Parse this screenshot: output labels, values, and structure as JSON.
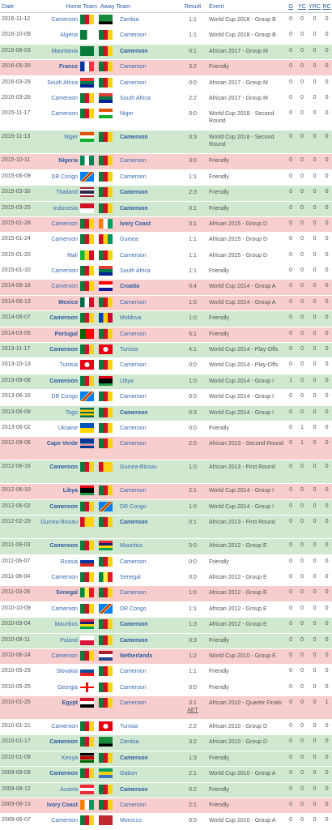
{
  "headers": {
    "date": "Date",
    "home": "Home Team",
    "away": "Away Team",
    "result": "Result",
    "event": "Event",
    "g": "G",
    "yc": "YC",
    "yrc": "YRC",
    "rc": "RC"
  },
  "matches": [
    {
      "date": "2016-11-12",
      "home": "Cameroon",
      "home_flag": "cm",
      "away": "Zambia",
      "away_flag": "zm",
      "result": "1:1",
      "event": "World Cup 2018 - Group B",
      "g": "0",
      "yc": "0",
      "yrc": "0",
      "rc": "0",
      "outcome": "d",
      "bold": "none"
    },
    {
      "date": "2016-10-09",
      "home": "Algeria",
      "home_flag": "dz",
      "away": "Cameroon",
      "away_flag": "cm",
      "result": "1:1",
      "event": "World Cup 2018 - Group B",
      "g": "0",
      "yc": "0",
      "yrc": "0",
      "rc": "0",
      "outcome": "d",
      "bold": "none"
    },
    {
      "date": "2016-06-03",
      "home": "Mauritania",
      "home_flag": "mr",
      "away": "Cameroon",
      "away_flag": "cm",
      "result": "0:1",
      "event": "African 2017 - Group M",
      "g": "0",
      "yc": "0",
      "yrc": "0",
      "rc": "0",
      "outcome": "w",
      "bold": "away"
    },
    {
      "date": "2016-05-30",
      "home": "France",
      "home_flag": "fr",
      "away": "Cameroon",
      "away_flag": "cm",
      "result": "3:2",
      "event": "Friendly",
      "g": "0",
      "yc": "0",
      "yrc": "0",
      "rc": "0",
      "outcome": "l",
      "bold": "home"
    },
    {
      "date": "2016-03-29",
      "home": "South Africa",
      "home_flag": "za",
      "away": "Cameroon",
      "away_flag": "cm",
      "result": "0:0",
      "event": "African 2017 - Group M",
      "g": "0",
      "yc": "0",
      "yrc": "0",
      "rc": "0",
      "outcome": "d",
      "bold": "none"
    },
    {
      "date": "2016-03-26",
      "home": "Cameroon",
      "home_flag": "cm",
      "away": "South Africa",
      "away_flag": "za",
      "result": "2:2",
      "event": "African 2017 - Group M",
      "g": "0",
      "yc": "0",
      "yrc": "0",
      "rc": "0",
      "outcome": "d",
      "bold": "none"
    },
    {
      "date": "2015-11-17",
      "home": "Cameroon",
      "home_flag": "cm",
      "away": "Niger",
      "away_flag": "ne",
      "result": "0:0",
      "event": "World Cup 2018 - Second Round",
      "g": "0",
      "yc": "0",
      "yrc": "0",
      "rc": "0",
      "outcome": "d",
      "bold": "none"
    },
    {
      "date": "2015-11-13",
      "home": "Niger",
      "home_flag": "ne",
      "away": "Cameroon",
      "away_flag": "cm",
      "result": "0:3",
      "event": "World Cup 2018 - Second Round",
      "g": "0",
      "yc": "0",
      "yrc": "0",
      "rc": "0",
      "outcome": "w",
      "bold": "away"
    },
    {
      "date": "2015-10-11",
      "home": "Nigeria",
      "home_flag": "ng",
      "away": "Cameroon",
      "away_flag": "cm",
      "result": "3:0",
      "event": "Friendly",
      "g": "0",
      "yc": "0",
      "yrc": "0",
      "rc": "0",
      "outcome": "l",
      "bold": "home"
    },
    {
      "date": "2015-06-09",
      "home": "DR Congo",
      "home_flag": "cd",
      "away": "Cameroon",
      "away_flag": "cm",
      "result": "1:1",
      "event": "Friendly",
      "g": "0",
      "yc": "0",
      "yrc": "0",
      "rc": "0",
      "outcome": "d",
      "bold": "none"
    },
    {
      "date": "2015-03-30",
      "home": "Thailand",
      "home_flag": "th",
      "away": "Cameroon",
      "away_flag": "cm",
      "result": "2:3",
      "event": "Friendly",
      "g": "0",
      "yc": "0",
      "yrc": "0",
      "rc": "0",
      "outcome": "w",
      "bold": "away"
    },
    {
      "date": "2015-03-25",
      "home": "Indonesia",
      "home_flag": "id",
      "away": "Cameroon",
      "away_flag": "cm",
      "result": "0:1",
      "event": "Friendly",
      "g": "0",
      "yc": "0",
      "yrc": "0",
      "rc": "0",
      "outcome": "w",
      "bold": "away"
    },
    {
      "date": "2015-01-28",
      "home": "Cameroon",
      "home_flag": "cm",
      "away": "Ivory Coast",
      "away_flag": "ci",
      "result": "0:1",
      "event": "African 2015 - Group D",
      "g": "0",
      "yc": "0",
      "yrc": "0",
      "rc": "0",
      "outcome": "l",
      "bold": "away"
    },
    {
      "date": "2015-01-24",
      "home": "Cameroon",
      "home_flag": "cm",
      "away": "Guinea",
      "away_flag": "gn",
      "result": "1:1",
      "event": "African 2015 - Group D",
      "g": "0",
      "yc": "0",
      "yrc": "0",
      "rc": "0",
      "outcome": "d",
      "bold": "none"
    },
    {
      "date": "2015-01-20",
      "home": "Mali",
      "home_flag": "ml",
      "away": "Cameroon",
      "away_flag": "cm",
      "result": "1:1",
      "event": "African 2015 - Group D",
      "g": "0",
      "yc": "0",
      "yrc": "0",
      "rc": "0",
      "outcome": "d",
      "bold": "none"
    },
    {
      "date": "2015-01-10",
      "home": "Cameroon",
      "home_flag": "cm",
      "away": "South Africa",
      "away_flag": "za",
      "result": "1:1",
      "event": "Friendly",
      "g": "0",
      "yc": "0",
      "yrc": "0",
      "rc": "0",
      "outcome": "d",
      "bold": "none"
    },
    {
      "date": "2014-06-18",
      "home": "Cameroon",
      "home_flag": "cm",
      "away": "Croatia",
      "away_flag": "hr",
      "result": "0:4",
      "event": "World Cup 2014 - Group A",
      "g": "0",
      "yc": "0",
      "yrc": "0",
      "rc": "0",
      "outcome": "l",
      "bold": "away"
    },
    {
      "date": "2014-06-13",
      "home": "Mexico",
      "home_flag": "mx",
      "away": "Cameroon",
      "away_flag": "cm",
      "result": "1:0",
      "event": "World Cup 2014 - Group A",
      "g": "0",
      "yc": "0",
      "yrc": "0",
      "rc": "0",
      "outcome": "l",
      "bold": "home"
    },
    {
      "date": "2014-06-07",
      "home": "Cameroon",
      "home_flag": "cm",
      "away": "Moldova",
      "away_flag": "md",
      "result": "1:0",
      "event": "Friendly",
      "g": "0",
      "yc": "0",
      "yrc": "0",
      "rc": "0",
      "outcome": "w",
      "bold": "home"
    },
    {
      "date": "2014-03-05",
      "home": "Portugal",
      "home_flag": "pt",
      "away": "Cameroon",
      "away_flag": "cm",
      "result": "5:1",
      "event": "Friendly",
      "g": "0",
      "yc": "0",
      "yrc": "0",
      "rc": "0",
      "outcome": "l",
      "bold": "home"
    },
    {
      "date": "2013-11-17",
      "home": "Cameroon",
      "home_flag": "cm",
      "away": "Tunisia",
      "away_flag": "tn",
      "result": "4:1",
      "event": "World Cup 2014 - Play-Offs",
      "g": "0",
      "yc": "0",
      "yrc": "0",
      "rc": "0",
      "outcome": "w",
      "bold": "home"
    },
    {
      "date": "2013-10-13",
      "home": "Tunisia",
      "home_flag": "tn",
      "away": "Cameroon",
      "away_flag": "cm",
      "result": "0:0",
      "event": "World Cup 2014 - Play-Offs",
      "g": "0",
      "yc": "0",
      "yrc": "0",
      "rc": "0",
      "outcome": "d",
      "bold": "none"
    },
    {
      "date": "2013-09-08",
      "home": "Cameroon",
      "home_flag": "cm",
      "away": "Libya",
      "away_flag": "ly",
      "result": "1:0",
      "event": "World Cup 2014 - Group I",
      "g": "1",
      "yc": "0",
      "yrc": "0",
      "rc": "0",
      "outcome": "w",
      "bold": "home"
    },
    {
      "date": "2013-06-16",
      "home": "DR Congo",
      "home_flag": "cd",
      "away": "Cameroon",
      "away_flag": "cm",
      "result": "0:0",
      "event": "World Cup 2014 - Group I",
      "g": "0",
      "yc": "0",
      "yrc": "0",
      "rc": "0",
      "outcome": "d",
      "bold": "none"
    },
    {
      "date": "2013-06-09",
      "home": "Togo",
      "home_flag": "tg",
      "away": "Cameroon",
      "away_flag": "cm",
      "result": "0:3",
      "event": "World Cup 2014 - Group I",
      "g": "0",
      "yc": "0",
      "yrc": "0",
      "rc": "0",
      "outcome": "w",
      "bold": "away"
    },
    {
      "date": "2013-06-02",
      "home": "Ukraine",
      "home_flag": "ua",
      "away": "Cameroon",
      "away_flag": "cm",
      "result": "0:0",
      "event": "Friendly",
      "g": "0",
      "yc": "1",
      "yrc": "0",
      "rc": "0",
      "outcome": "d",
      "bold": "none"
    },
    {
      "date": "2012-09-08",
      "home": "Cape Verde",
      "home_flag": "cv",
      "away": "Cameroon",
      "away_flag": "cm",
      "result": "2:0",
      "event": "African 2013 - Second Round",
      "g": "0",
      "yc": "1",
      "yrc": "0",
      "rc": "0",
      "outcome": "l",
      "bold": "home"
    },
    {
      "date": "2012-06-16",
      "home": "Cameroon",
      "home_flag": "cm",
      "away": "Guinea-Bissau",
      "away_flag": "gw",
      "result": "1:0",
      "event": "African 2013 - First Round",
      "g": "0",
      "yc": "0",
      "yrc": "0",
      "rc": "0",
      "outcome": "w",
      "bold": "home"
    },
    {
      "date": "2012-06-10",
      "home": "Libya",
      "home_flag": "ly",
      "away": "Cameroon",
      "away_flag": "cm",
      "result": "2:1",
      "event": "World Cup 2014 - Group I",
      "g": "0",
      "yc": "0",
      "yrc": "0",
      "rc": "0",
      "outcome": "l",
      "bold": "home"
    },
    {
      "date": "2012-06-02",
      "home": "Cameroon",
      "home_flag": "cm",
      "away": "DR Congo",
      "away_flag": "cd",
      "result": "1:0",
      "event": "World Cup 2014 - Group I",
      "g": "0",
      "yc": "0",
      "yrc": "0",
      "rc": "0",
      "outcome": "w",
      "bold": "home"
    },
    {
      "date": "2012-02-29",
      "home": "Guinea-Bissau",
      "home_flag": "gw",
      "away": "Cameroon",
      "away_flag": "cm",
      "result": "0:1",
      "event": "African 2013 - First Round",
      "g": "0",
      "yc": "0",
      "yrc": "0",
      "rc": "0",
      "outcome": "w",
      "bold": "away"
    },
    {
      "date": "2011-09-03",
      "home": "Cameroon",
      "home_flag": "cm",
      "away": "Mauritius",
      "away_flag": "mu",
      "result": "5:0",
      "event": "African 2012 - Group E",
      "g": "0",
      "yc": "0",
      "yrc": "0",
      "rc": "0",
      "outcome": "w",
      "bold": "home"
    },
    {
      "date": "2011-06-07",
      "home": "Russia",
      "home_flag": "ru",
      "away": "Cameroon",
      "away_flag": "cm",
      "result": "0:0",
      "event": "Friendly",
      "g": "0",
      "yc": "0",
      "yrc": "0",
      "rc": "0",
      "outcome": "d",
      "bold": "none"
    },
    {
      "date": "2011-06-04",
      "home": "Cameroon",
      "home_flag": "cm",
      "away": "Senegal",
      "away_flag": "sn",
      "result": "0:0",
      "event": "African 2012 - Group E",
      "g": "0",
      "yc": "0",
      "yrc": "0",
      "rc": "0",
      "outcome": "d",
      "bold": "none"
    },
    {
      "date": "2011-03-26",
      "home": "Senegal",
      "home_flag": "sn",
      "away": "Cameroon",
      "away_flag": "cm",
      "result": "1:0",
      "event": "African 2012 - Group E",
      "g": "0",
      "yc": "0",
      "yrc": "0",
      "rc": "0",
      "outcome": "l",
      "bold": "home"
    },
    {
      "date": "2010-10-09",
      "home": "Cameroon",
      "home_flag": "cm",
      "away": "DR Congo",
      "away_flag": "cd",
      "result": "1:1",
      "event": "African 2012 - Group E",
      "g": "0",
      "yc": "0",
      "yrc": "0",
      "rc": "0",
      "outcome": "d",
      "bold": "none"
    },
    {
      "date": "2010-09-04",
      "home": "Mauritius",
      "home_flag": "mu",
      "away": "Cameroon",
      "away_flag": "cm",
      "result": "1:3",
      "event": "African 2012 - Group E",
      "g": "0",
      "yc": "0",
      "yrc": "0",
      "rc": "0",
      "outcome": "w",
      "bold": "away"
    },
    {
      "date": "2010-08-11",
      "home": "Poland",
      "home_flag": "pl",
      "away": "Cameroon",
      "away_flag": "cm",
      "result": "0:3",
      "event": "Friendly",
      "g": "0",
      "yc": "0",
      "yrc": "0",
      "rc": "0",
      "outcome": "w",
      "bold": "away"
    },
    {
      "date": "2010-06-24",
      "home": "Cameroon",
      "home_flag": "cm",
      "away": "Netherlands",
      "away_flag": "nl",
      "result": "1:2",
      "event": "World Cup 2010 - Group E",
      "g": "0",
      "yc": "0",
      "yrc": "0",
      "rc": "0",
      "outcome": "l",
      "bold": "away"
    },
    {
      "date": "2010-05-29",
      "home": "Slovakia",
      "home_flag": "sk",
      "away": "Cameroon",
      "away_flag": "cm",
      "result": "1:1",
      "event": "Friendly",
      "g": "0",
      "yc": "0",
      "yrc": "0",
      "rc": "0",
      "outcome": "d",
      "bold": "none"
    },
    {
      "date": "2010-05-25",
      "home": "Georgia",
      "home_flag": "ge",
      "away": "Cameroon",
      "away_flag": "cm",
      "result": "0:0",
      "event": "Friendly",
      "g": "0",
      "yc": "0",
      "yrc": "0",
      "rc": "0",
      "outcome": "d",
      "bold": "none"
    },
    {
      "date": "2010-01-25",
      "home": "Egypt",
      "home_flag": "eg",
      "away": "Cameroon",
      "away_flag": "cm",
      "result": "3:1",
      "result_extra": "AET",
      "event": "African 2010 - Quarter Finals",
      "g": "0",
      "yc": "0",
      "yrc": "0",
      "rc": "1",
      "outcome": "l",
      "bold": "home"
    },
    {
      "date": "2010-01-21",
      "home": "Cameroon",
      "home_flag": "cm",
      "away": "Tunisia",
      "away_flag": "tn",
      "result": "2:2",
      "event": "African 2010 - Group D",
      "g": "0",
      "yc": "0",
      "yrc": "0",
      "rc": "0",
      "outcome": "d",
      "bold": "none"
    },
    {
      "date": "2010-01-17",
      "home": "Cameroon",
      "home_flag": "cm",
      "away": "Zambia",
      "away_flag": "zm",
      "result": "3:2",
      "event": "African 2010 - Group D",
      "g": "0",
      "yc": "0",
      "yrc": "0",
      "rc": "0",
      "outcome": "w",
      "bold": "home"
    },
    {
      "date": "2010-01-09",
      "home": "Kenya",
      "home_flag": "ke",
      "away": "Cameroon",
      "away_flag": "cm",
      "result": "1:3",
      "event": "Friendly",
      "g": "0",
      "yc": "0",
      "yrc": "0",
      "rc": "0",
      "outcome": "w",
      "bold": "away"
    },
    {
      "date": "2009-09-09",
      "home": "Cameroon",
      "home_flag": "cm",
      "away": "Gabon",
      "away_flag": "ga",
      "result": "2:1",
      "event": "World Cup 2010 - Group A",
      "g": "0",
      "yc": "0",
      "yrc": "0",
      "rc": "0",
      "outcome": "w",
      "bold": "home"
    },
    {
      "date": "2009-08-12",
      "home": "Austria",
      "home_flag": "at",
      "away": "Cameroon",
      "away_flag": "cm",
      "result": "0:2",
      "event": "Friendly",
      "g": "0",
      "yc": "0",
      "yrc": "0",
      "rc": "0",
      "outcome": "w",
      "bold": "away"
    },
    {
      "date": "2009-06-13",
      "home": "Ivory Coast",
      "home_flag": "ci",
      "away": "Cameroon",
      "away_flag": "cm",
      "result": "2:1",
      "event": "Friendly",
      "g": "0",
      "yc": "0",
      "yrc": "0",
      "rc": "0",
      "outcome": "l",
      "bold": "home"
    },
    {
      "date": "2009-06-07",
      "home": "Cameroon",
      "home_flag": "cm",
      "away": "Morocco",
      "away_flag": "ma",
      "result": "0:0",
      "event": "World Cup 2010 - Group A",
      "g": "0",
      "yc": "0",
      "yrc": "0",
      "rc": "0",
      "outcome": "d",
      "bold": "none"
    }
  ]
}
